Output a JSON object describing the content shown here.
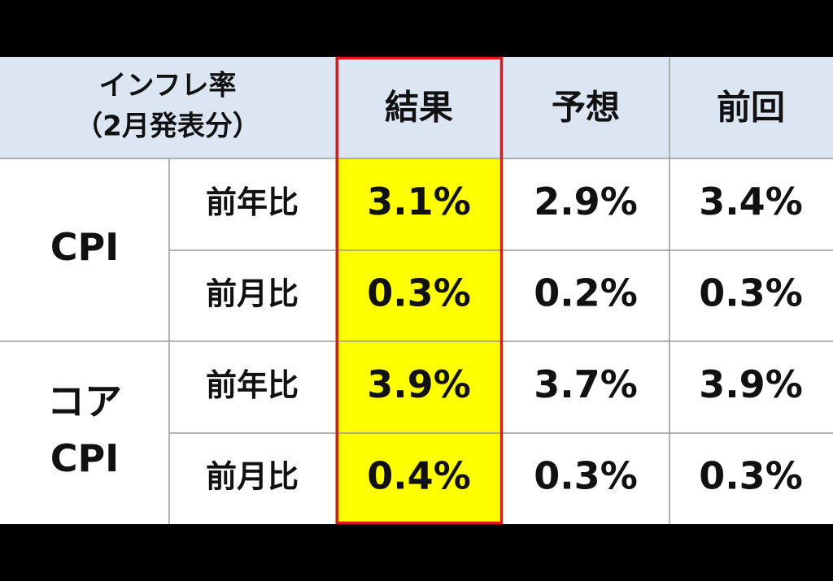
{
  "header": {
    "title_lines": [
      "インフレ率",
      "（2月発表分）"
    ],
    "columns": [
      "結果",
      "予想",
      "前回"
    ]
  },
  "table": {
    "groups": [
      {
        "label_lines": [
          "CPI"
        ],
        "rows": [
          {
            "label": "前年比",
            "cells": [
              "3.1%",
              "2.9%",
              "3.4%"
            ]
          },
          {
            "label": "前月比",
            "cells": [
              "0.3%",
              "0.2%",
              "0.3%"
            ]
          }
        ]
      },
      {
        "label_lines": [
          "コア",
          "CPI"
        ],
        "rows": [
          {
            "label": "前年比",
            "cells": [
              "3.9%",
              "3.7%",
              "3.9%"
            ]
          },
          {
            "label": "前月比",
            "cells": [
              "0.4%",
              "0.3%",
              "0.3%"
            ]
          }
        ]
      }
    ]
  }
}
